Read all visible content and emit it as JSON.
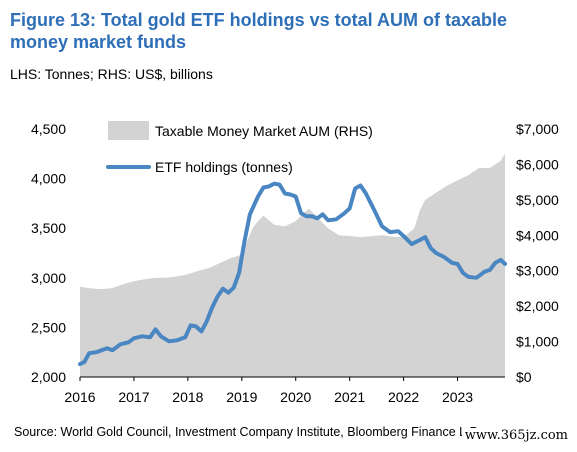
{
  "figure": {
    "title": "Figure 13: Total gold ETF holdings vs total AUM of taxable money market funds",
    "subtitle": "LHS: Tonnes; RHS: US$, billions",
    "source": "Source: World Gold Council, Investment Company Institute, Bloomberg Finance L.P.",
    "watermark": "www.365jz.com"
  },
  "colors": {
    "title": "#2e6fb7",
    "line": "#4a86c2",
    "area": "#d3d3d3",
    "text": "#000000"
  },
  "chart_data": {
    "type": "line",
    "x_ticks": [
      "2016",
      "2017",
      "2018",
      "2019",
      "2020",
      "2021",
      "2022",
      "2023"
    ],
    "y_left": {
      "ylim": [
        2000,
        4500
      ],
      "ticks": [
        "2,000",
        "2,500",
        "3,000",
        "3,500",
        "4,000",
        "4,500"
      ]
    },
    "y_right": {
      "ylim": [
        0,
        7000
      ],
      "ticks": [
        "$0",
        "$1,000",
        "$2,000",
        "$3,000",
        "$4,000",
        "$5,000",
        "$6,000",
        "$7,000"
      ]
    },
    "legend_position": "top-left",
    "series": [
      {
        "name": "Taxable Money Market AUM (RHS)",
        "type": "area",
        "axis": "right",
        "x": [
          2016.0,
          2016.2,
          2016.4,
          2016.6,
          2016.8,
          2017.0,
          2017.2,
          2017.4,
          2017.6,
          2017.8,
          2018.0,
          2018.2,
          2018.4,
          2018.6,
          2018.8,
          2019.0,
          2019.1,
          2019.2,
          2019.3,
          2019.4,
          2019.6,
          2019.8,
          2020.0,
          2020.2,
          2020.25,
          2020.4,
          2020.6,
          2020.8,
          2021.0,
          2021.2,
          2021.4,
          2021.6,
          2021.8,
          2022.0,
          2022.2,
          2022.3,
          2022.4,
          2022.5,
          2022.6,
          2022.8,
          2023.0,
          2023.2,
          2023.4,
          2023.6,
          2023.8,
          2023.88
        ],
        "values": [
          2550,
          2500,
          2480,
          2510,
          2620,
          2700,
          2760,
          2800,
          2800,
          2840,
          2900,
          3000,
          3080,
          3220,
          3360,
          3450,
          3850,
          4200,
          4400,
          4550,
          4300,
          4250,
          4400,
          4700,
          4750,
          4500,
          4200,
          4000,
          3980,
          3950,
          3970,
          4000,
          3960,
          3950,
          4200,
          4700,
          5000,
          5100,
          5200,
          5400,
          5550,
          5700,
          5900,
          5900,
          6100,
          6300
        ]
      },
      {
        "name": "ETF holdings (tonnes)",
        "type": "line",
        "axis": "left",
        "x": [
          2016.0,
          2016.08,
          2016.17,
          2016.3,
          2016.5,
          2016.6,
          2016.75,
          2016.9,
          2017.0,
          2017.15,
          2017.3,
          2017.4,
          2017.5,
          2017.65,
          2017.8,
          2017.95,
          2018.05,
          2018.15,
          2018.25,
          2018.35,
          2018.45,
          2018.55,
          2018.65,
          2018.75,
          2018.85,
          2018.95,
          2019.05,
          2019.15,
          2019.3,
          2019.4,
          2019.5,
          2019.6,
          2019.7,
          2019.8,
          2019.9,
          2020.0,
          2020.1,
          2020.2,
          2020.3,
          2020.4,
          2020.5,
          2020.6,
          2020.75,
          2020.9,
          2021.0,
          2021.1,
          2021.2,
          2021.3,
          2021.45,
          2021.6,
          2021.75,
          2021.9,
          2022.0,
          2022.15,
          2022.3,
          2022.4,
          2022.5,
          2022.6,
          2022.75,
          2022.9,
          2023.0,
          2023.1,
          2023.2,
          2023.35,
          2023.5,
          2023.6,
          2023.7,
          2023.8,
          2023.88
        ],
        "values": [
          2130,
          2150,
          2240,
          2250,
          2290,
          2270,
          2330,
          2350,
          2390,
          2410,
          2400,
          2480,
          2410,
          2360,
          2370,
          2400,
          2520,
          2510,
          2460,
          2560,
          2700,
          2810,
          2890,
          2850,
          2900,
          3050,
          3370,
          3640,
          3820,
          3910,
          3920,
          3950,
          3940,
          3850,
          3840,
          3820,
          3650,
          3620,
          3620,
          3600,
          3640,
          3580,
          3590,
          3650,
          3700,
          3900,
          3930,
          3850,
          3690,
          3520,
          3460,
          3470,
          3420,
          3340,
          3380,
          3410,
          3300,
          3250,
          3210,
          3150,
          3140,
          3050,
          3010,
          3000,
          3060,
          3080,
          3150,
          3180,
          3140
        ]
      }
    ]
  }
}
